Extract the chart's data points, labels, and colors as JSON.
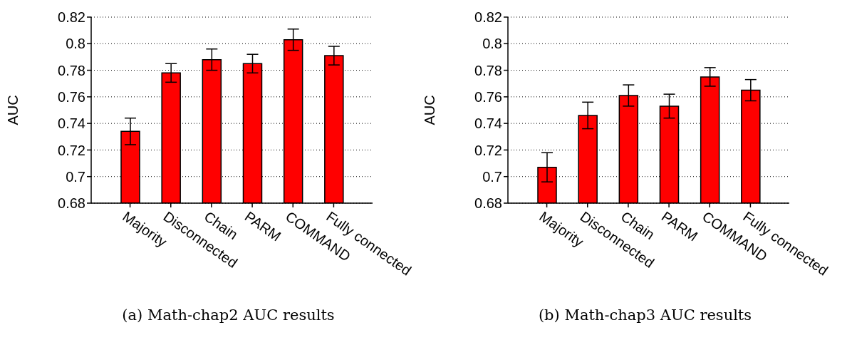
{
  "chart_data": [
    {
      "type": "bar",
      "ylabel": "AUC",
      "categories": [
        "Majority",
        "Disconnected",
        "Chain",
        "PARM",
        "COMMAND",
        "Fully connected"
      ],
      "values": [
        0.734,
        0.778,
        0.788,
        0.785,
        0.803,
        0.791
      ],
      "errors": [
        0.01,
        0.007,
        0.008,
        0.007,
        0.008,
        0.007
      ],
      "color": "#ff0000",
      "ylim": [
        0.68,
        0.82
      ],
      "yticks": [
        0.68,
        0.7,
        0.72,
        0.74,
        0.76,
        0.78,
        0.8,
        0.82
      ],
      "grid": "y",
      "annotations": [
        "(a) Math-chap2 AUC results"
      ]
    },
    {
      "type": "bar",
      "ylabel": "AUC",
      "categories": [
        "Majority",
        "Disconnected",
        "Chain",
        "PARM",
        "COMMAND",
        "Fully connected"
      ],
      "values": [
        0.707,
        0.746,
        0.761,
        0.753,
        0.775,
        0.765
      ],
      "errors": [
        0.011,
        0.01,
        0.008,
        0.009,
        0.007,
        0.008
      ],
      "color": "#ff0000",
      "ylim": [
        0.68,
        0.82
      ],
      "yticks": [
        0.68,
        0.7,
        0.72,
        0.74,
        0.76,
        0.78,
        0.8,
        0.82
      ],
      "grid": "y",
      "annotations": [
        "(b) Math-chap3 AUC results"
      ]
    }
  ]
}
